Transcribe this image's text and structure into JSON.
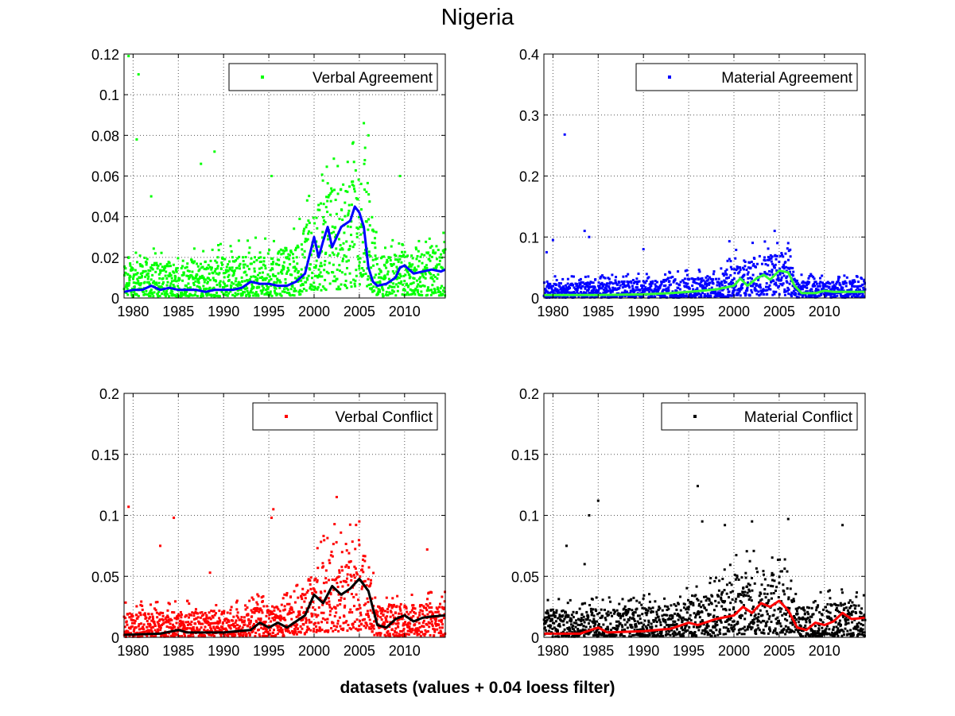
{
  "figure": {
    "title": "Nigeria",
    "xlabel": "datasets (values + 0.04 loess filter)"
  },
  "chart_data": [
    {
      "type": "scatter",
      "legend": "Verbal Agreement",
      "legend_position": "top-right",
      "grid": true,
      "xlim": [
        1979,
        2014.5
      ],
      "ylim": [
        0,
        0.12
      ],
      "xticks": [
        1980,
        1985,
        1990,
        1995,
        2000,
        2005,
        2010
      ],
      "yticks": [
        0,
        0.02,
        0.04,
        0.06,
        0.08,
        0.1,
        0.12
      ],
      "xtick_labels": [
        "1980",
        "1985",
        "1990",
        "1995",
        "2000",
        "2005",
        "2010"
      ],
      "ytick_labels": [
        "0",
        "0.02",
        "0.04",
        "0.06",
        "0.08",
        "0.1",
        "0.12"
      ],
      "point_color": "#00ff00",
      "trend_color": "#0000ff",
      "scatter_band": [
        [
          1979,
          0.004,
          0.018
        ],
        [
          1985,
          0.004,
          0.018
        ],
        [
          1990,
          0.004,
          0.02
        ],
        [
          1995,
          0.005,
          0.022
        ],
        [
          1998,
          0.006,
          0.025
        ],
        [
          2000,
          0.018,
          0.045
        ],
        [
          2001,
          0.018,
          0.05
        ],
        [
          2002,
          0.02,
          0.055
        ],
        [
          2003,
          0.022,
          0.055
        ],
        [
          2004,
          0.025,
          0.06
        ],
        [
          2005,
          0.03,
          0.065
        ],
        [
          2006,
          0.025,
          0.06
        ],
        [
          2007,
          0.004,
          0.02
        ],
        [
          2010,
          0.006,
          0.022
        ],
        [
          2014.5,
          0.006,
          0.024
        ]
      ],
      "outliers": [
        [
          1979.5,
          0.119
        ],
        [
          1980.6,
          0.11
        ],
        [
          1980.4,
          0.078
        ],
        [
          1987.5,
          0.066
        ],
        [
          1989,
          0.072
        ],
        [
          1995.3,
          0.06
        ],
        [
          2005.5,
          0.086
        ],
        [
          2006,
          0.08
        ],
        [
          2009.5,
          0.06
        ],
        [
          1982,
          0.05
        ]
      ],
      "trend": [
        [
          1979,
          0.003
        ],
        [
          1980,
          0.004
        ],
        [
          1981,
          0.004
        ],
        [
          1982,
          0.006
        ],
        [
          1983,
          0.004
        ],
        [
          1984,
          0.005
        ],
        [
          1985,
          0.004
        ],
        [
          1986,
          0.004
        ],
        [
          1987,
          0.004
        ],
        [
          1988,
          0.003
        ],
        [
          1989,
          0.004
        ],
        [
          1990,
          0.004
        ],
        [
          1991,
          0.004
        ],
        [
          1992,
          0.005
        ],
        [
          1993,
          0.008
        ],
        [
          1994,
          0.007
        ],
        [
          1995,
          0.007
        ],
        [
          1996,
          0.006
        ],
        [
          1997,
          0.006
        ],
        [
          1998,
          0.008
        ],
        [
          1999,
          0.012
        ],
        [
          2000,
          0.03
        ],
        [
          2000.5,
          0.02
        ],
        [
          2001,
          0.028
        ],
        [
          2001.5,
          0.035
        ],
        [
          2002,
          0.025
        ],
        [
          2002.5,
          0.03
        ],
        [
          2003,
          0.035
        ],
        [
          2004,
          0.038
        ],
        [
          2004.5,
          0.045
        ],
        [
          2005,
          0.042
        ],
        [
          2005.5,
          0.035
        ],
        [
          2006,
          0.015
        ],
        [
          2006.5,
          0.008
        ],
        [
          2007,
          0.006
        ],
        [
          2008,
          0.007
        ],
        [
          2009,
          0.01
        ],
        [
          2009.5,
          0.015
        ],
        [
          2010,
          0.016
        ],
        [
          2011,
          0.012
        ],
        [
          2012,
          0.013
        ],
        [
          2013,
          0.014
        ],
        [
          2014,
          0.013
        ],
        [
          2014.5,
          0.014
        ]
      ]
    },
    {
      "type": "scatter",
      "legend": "Material Agreement",
      "legend_position": "top-right",
      "grid": true,
      "xlim": [
        1979,
        2014.5
      ],
      "ylim": [
        0,
        0.4
      ],
      "xticks": [
        1980,
        1985,
        1990,
        1995,
        2000,
        2005,
        2010
      ],
      "yticks": [
        0,
        0.1,
        0.2,
        0.3,
        0.4
      ],
      "xtick_labels": [
        "1980",
        "1985",
        "1990",
        "1995",
        "2000",
        "2005",
        "2010"
      ],
      "ytick_labels": [
        "0",
        "0.1",
        "0.2",
        "0.3",
        "0.4"
      ],
      "point_color": "#0000ff",
      "trend_color": "#33ff33",
      "scatter_band": [
        [
          1979,
          0.003,
          0.025
        ],
        [
          1990,
          0.003,
          0.028
        ],
        [
          1995,
          0.004,
          0.032
        ],
        [
          1998,
          0.006,
          0.035
        ],
        [
          2000,
          0.015,
          0.06
        ],
        [
          2003,
          0.02,
          0.07
        ],
        [
          2005,
          0.025,
          0.075
        ],
        [
          2006,
          0.02,
          0.07
        ],
        [
          2007,
          0.004,
          0.028
        ],
        [
          2014.5,
          0.004,
          0.025
        ]
      ],
      "outliers": [
        [
          1981.3,
          0.268
        ],
        [
          1979.3,
          0.075
        ],
        [
          1980,
          0.095
        ],
        [
          1983.5,
          0.11
        ],
        [
          1984,
          0.1
        ],
        [
          1999.5,
          0.093
        ],
        [
          2004.5,
          0.11
        ],
        [
          2006,
          0.09
        ],
        [
          1990,
          0.08
        ]
      ],
      "trend": [
        [
          1979,
          0.005
        ],
        [
          1985,
          0.005
        ],
        [
          1990,
          0.006
        ],
        [
          1993,
          0.008
        ],
        [
          1995,
          0.01
        ],
        [
          1998,
          0.014
        ],
        [
          2000,
          0.02
        ],
        [
          2000.7,
          0.032
        ],
        [
          2001.5,
          0.02
        ],
        [
          2002.5,
          0.032
        ],
        [
          2003.3,
          0.038
        ],
        [
          2004,
          0.03
        ],
        [
          2005,
          0.045
        ],
        [
          2006,
          0.042
        ],
        [
          2006.7,
          0.02
        ],
        [
          2007.5,
          0.008
        ],
        [
          2009,
          0.008
        ],
        [
          2010,
          0.012
        ],
        [
          2011,
          0.01
        ],
        [
          2014.5,
          0.01
        ]
      ]
    },
    {
      "type": "scatter",
      "legend": "Verbal Conflict",
      "legend_position": "top-right",
      "grid": true,
      "xlim": [
        1979,
        2014.5
      ],
      "ylim": [
        0,
        0.2
      ],
      "xticks": [
        1980,
        1985,
        1990,
        1995,
        2000,
        2005,
        2010
      ],
      "yticks": [
        0,
        0.05,
        0.1,
        0.15,
        0.2
      ],
      "xtick_labels": [
        "1980",
        "1985",
        "1990",
        "1995",
        "2000",
        "2005",
        "2010"
      ],
      "ytick_labels": [
        "0",
        "0.05",
        "0.1",
        "0.15",
        "0.2"
      ],
      "point_color": "#ff0000",
      "trend_color": "#000000",
      "scatter_band": [
        [
          1979,
          0.002,
          0.02
        ],
        [
          1990,
          0.003,
          0.022
        ],
        [
          1995,
          0.004,
          0.026
        ],
        [
          1998,
          0.006,
          0.03
        ],
        [
          2000,
          0.02,
          0.06
        ],
        [
          2002,
          0.022,
          0.07
        ],
        [
          2005,
          0.025,
          0.075
        ],
        [
          2006,
          0.02,
          0.065
        ],
        [
          2007,
          0.004,
          0.025
        ],
        [
          2014.5,
          0.006,
          0.028
        ]
      ],
      "outliers": [
        [
          1979.5,
          0.107
        ],
        [
          1984.5,
          0.098
        ],
        [
          1995.5,
          0.105
        ],
        [
          1995.3,
          0.098
        ],
        [
          2002.5,
          0.115
        ],
        [
          2005,
          0.095
        ],
        [
          2012.5,
          0.072
        ],
        [
          1983,
          0.075
        ],
        [
          1988.5,
          0.053
        ]
      ],
      "trend": [
        [
          1979,
          0.002
        ],
        [
          1983,
          0.003
        ],
        [
          1985,
          0.006
        ],
        [
          1986,
          0.004
        ],
        [
          1990,
          0.004
        ],
        [
          1993,
          0.006
        ],
        [
          1994,
          0.012
        ],
        [
          1995,
          0.008
        ],
        [
          1996,
          0.012
        ],
        [
          1997,
          0.008
        ],
        [
          1999,
          0.018
        ],
        [
          2000,
          0.035
        ],
        [
          2001,
          0.028
        ],
        [
          2002,
          0.042
        ],
        [
          2003,
          0.035
        ],
        [
          2004,
          0.04
        ],
        [
          2005,
          0.048
        ],
        [
          2006,
          0.038
        ],
        [
          2007,
          0.01
        ],
        [
          2008,
          0.008
        ],
        [
          2009,
          0.015
        ],
        [
          2010,
          0.018
        ],
        [
          2011,
          0.013
        ],
        [
          2012,
          0.016
        ],
        [
          2013,
          0.017
        ],
        [
          2014.5,
          0.018
        ]
      ]
    },
    {
      "type": "scatter",
      "legend": "Material Conflict",
      "legend_position": "top-right",
      "grid": true,
      "xlim": [
        1979,
        2014.5
      ],
      "ylim": [
        0,
        0.2
      ],
      "xticks": [
        1980,
        1985,
        1990,
        1995,
        2000,
        2005,
        2010
      ],
      "yticks": [
        0,
        0.05,
        0.1,
        0.15,
        0.2
      ],
      "xtick_labels": [
        "1980",
        "1985",
        "1990",
        "1995",
        "2000",
        "2005",
        "2010"
      ],
      "ytick_labels": [
        "0",
        "0.05",
        "0.1",
        "0.15",
        "0.2"
      ],
      "point_color": "#000000",
      "trend_color": "#ff0000",
      "scatter_band": [
        [
          1979,
          0.002,
          0.022
        ],
        [
          1990,
          0.003,
          0.024
        ],
        [
          1995,
          0.004,
          0.03
        ],
        [
          1998,
          0.006,
          0.036
        ],
        [
          2000,
          0.012,
          0.05
        ],
        [
          2003,
          0.015,
          0.055
        ],
        [
          2006,
          0.012,
          0.05
        ],
        [
          2007,
          0.004,
          0.025
        ],
        [
          2014.5,
          0.005,
          0.03
        ]
      ],
      "outliers": [
        [
          1985,
          0.112
        ],
        [
          1984,
          0.1
        ],
        [
          1996,
          0.124
        ],
        [
          1996.5,
          0.095
        ],
        [
          2002,
          0.095
        ],
        [
          2006,
          0.097
        ],
        [
          2012,
          0.092
        ],
        [
          1981.5,
          0.075
        ],
        [
          1999,
          0.092
        ],
        [
          1983.5,
          0.06
        ]
      ],
      "trend": [
        [
          1979,
          0.003
        ],
        [
          1983,
          0.003
        ],
        [
          1985,
          0.008
        ],
        [
          1986,
          0.004
        ],
        [
          1990,
          0.005
        ],
        [
          1993,
          0.007
        ],
        [
          1995,
          0.012
        ],
        [
          1996,
          0.01
        ],
        [
          1998,
          0.015
        ],
        [
          2000,
          0.018
        ],
        [
          2001,
          0.025
        ],
        [
          2002,
          0.02
        ],
        [
          2003,
          0.028
        ],
        [
          2004,
          0.025
        ],
        [
          2005,
          0.03
        ],
        [
          2006,
          0.022
        ],
        [
          2007,
          0.008
        ],
        [
          2008,
          0.006
        ],
        [
          2009,
          0.012
        ],
        [
          2010,
          0.01
        ],
        [
          2011,
          0.013
        ],
        [
          2012,
          0.02
        ],
        [
          2013,
          0.015
        ],
        [
          2014.5,
          0.016
        ]
      ]
    }
  ]
}
